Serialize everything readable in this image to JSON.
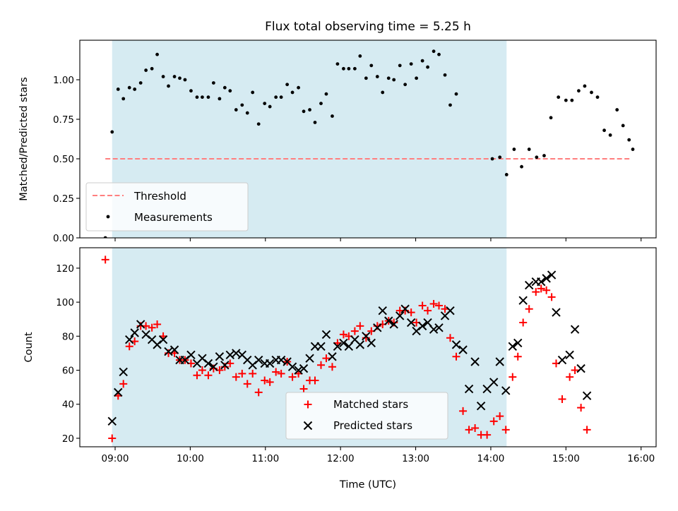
{
  "figure": {
    "title": "Flux total observing time = 5.25 h"
  },
  "chart_data": [
    {
      "type": "scatter",
      "title": "Flux total observing time = 5.25 h",
      "xlabel": "",
      "ylabel": "Matched/Predicted stars",
      "xlim": [
        8.53,
        16.2
      ],
      "ylim": [
        0.0,
        1.25
      ],
      "yticks": [
        "0.00",
        "0.25",
        "0.50",
        "0.75",
        "1.00"
      ],
      "xticks": [
        9,
        10,
        11,
        12,
        13,
        14,
        15,
        16
      ],
      "shaded_span": [
        8.96,
        14.21
      ],
      "threshold": {
        "name": "Threshold",
        "value": 0.5,
        "x_range": [
          8.87,
          15.87
        ],
        "color": "#ff7f7f"
      },
      "legend": {
        "position": "lower-left",
        "entries": [
          "Threshold",
          "Measurements"
        ]
      },
      "series": [
        {
          "name": "Measurements",
          "color": "#000000",
          "points": [
            [
              8.87,
              0.0
            ],
            [
              8.96,
              0.67
            ],
            [
              9.04,
              0.94
            ],
            [
              9.11,
              0.88
            ],
            [
              9.19,
              0.95
            ],
            [
              9.26,
              0.94
            ],
            [
              9.34,
              0.98
            ],
            [
              9.41,
              1.06
            ],
            [
              9.49,
              1.07
            ],
            [
              9.56,
              1.16
            ],
            [
              9.64,
              1.02
            ],
            [
              9.71,
              0.96
            ],
            [
              9.79,
              1.02
            ],
            [
              9.86,
              1.01
            ],
            [
              9.93,
              1.0
            ],
            [
              10.01,
              0.93
            ],
            [
              10.09,
              0.89
            ],
            [
              10.16,
              0.89
            ],
            [
              10.24,
              0.89
            ],
            [
              10.31,
              0.98
            ],
            [
              10.39,
              0.88
            ],
            [
              10.46,
              0.95
            ],
            [
              10.53,
              0.93
            ],
            [
              10.61,
              0.81
            ],
            [
              10.69,
              0.84
            ],
            [
              10.76,
              0.79
            ],
            [
              10.83,
              0.92
            ],
            [
              10.91,
              0.72
            ],
            [
              10.99,
              0.85
            ],
            [
              11.06,
              0.83
            ],
            [
              11.14,
              0.89
            ],
            [
              11.21,
              0.89
            ],
            [
              11.29,
              0.97
            ],
            [
              11.36,
              0.92
            ],
            [
              11.44,
              0.95
            ],
            [
              11.51,
              0.8
            ],
            [
              11.59,
              0.81
            ],
            [
              11.66,
              0.73
            ],
            [
              11.74,
              0.85
            ],
            [
              11.81,
              0.91
            ],
            [
              11.89,
              0.77
            ],
            [
              11.96,
              1.1
            ],
            [
              12.04,
              1.07
            ],
            [
              12.11,
              1.07
            ],
            [
              12.19,
              1.07
            ],
            [
              12.26,
              1.15
            ],
            [
              12.34,
              1.01
            ],
            [
              12.41,
              1.09
            ],
            [
              12.49,
              1.02
            ],
            [
              12.56,
              0.92
            ],
            [
              12.64,
              1.01
            ],
            [
              12.71,
              1.0
            ],
            [
              12.79,
              1.09
            ],
            [
              12.86,
              0.97
            ],
            [
              12.94,
              1.1
            ],
            [
              13.01,
              1.01
            ],
            [
              13.09,
              1.12
            ],
            [
              13.16,
              1.08
            ],
            [
              13.24,
              1.18
            ],
            [
              13.31,
              1.16
            ],
            [
              13.39,
              1.03
            ],
            [
              13.46,
              0.84
            ],
            [
              13.54,
              0.91
            ],
            [
              14.02,
              0.5
            ],
            [
              14.12,
              0.51
            ],
            [
              14.21,
              0.4
            ],
            [
              14.31,
              0.56
            ],
            [
              14.41,
              0.45
            ],
            [
              14.51,
              0.56
            ],
            [
              14.61,
              0.51
            ],
            [
              14.71,
              0.52
            ],
            [
              14.8,
              0.76
            ],
            [
              14.9,
              0.89
            ],
            [
              15.0,
              0.87
            ],
            [
              15.08,
              0.87
            ],
            [
              15.17,
              0.93
            ],
            [
              15.25,
              0.96
            ],
            [
              15.34,
              0.92
            ],
            [
              15.42,
              0.89
            ],
            [
              15.51,
              0.68
            ],
            [
              15.59,
              0.65
            ],
            [
              15.68,
              0.81
            ],
            [
              15.76,
              0.71
            ],
            [
              15.84,
              0.62
            ],
            [
              15.89,
              0.56
            ]
          ]
        }
      ]
    },
    {
      "type": "scatter",
      "title": "",
      "xlabel": "Time (UTC)",
      "ylabel": "Count",
      "xlim": [
        8.53,
        16.2
      ],
      "ylim": [
        15.0,
        132.0
      ],
      "yticks": [
        "20",
        "40",
        "60",
        "80",
        "100",
        "120"
      ],
      "xticks": [
        "09:00",
        "10:00",
        "11:00",
        "12:00",
        "13:00",
        "14:00",
        "15:00",
        "16:00"
      ],
      "shaded_span": [
        8.96,
        14.21
      ],
      "legend": {
        "position": "lower-center",
        "entries": [
          "Matched stars",
          "Predicted stars"
        ]
      },
      "series": [
        {
          "name": "Matched stars",
          "marker": "+",
          "color": "#ff0000",
          "points": [
            [
              8.87,
              125
            ],
            [
              8.96,
              20
            ],
            [
              9.04,
              45
            ],
            [
              9.11,
              52
            ],
            [
              9.19,
              74
            ],
            [
              9.26,
              77
            ],
            [
              9.34,
              86
            ],
            [
              9.41,
              86
            ],
            [
              9.49,
              85
            ],
            [
              9.56,
              87
            ],
            [
              9.64,
              80
            ],
            [
              9.71,
              70
            ],
            [
              9.79,
              70
            ],
            [
              9.86,
              66
            ],
            [
              9.93,
              66
            ],
            [
              10.01,
              64
            ],
            [
              10.09,
              57
            ],
            [
              10.16,
              60
            ],
            [
              10.24,
              57
            ],
            [
              10.31,
              61
            ],
            [
              10.39,
              60
            ],
            [
              10.46,
              62
            ],
            [
              10.53,
              64
            ],
            [
              10.61,
              56
            ],
            [
              10.69,
              58
            ],
            [
              10.76,
              52
            ],
            [
              10.83,
              58
            ],
            [
              10.91,
              47
            ],
            [
              10.99,
              54
            ],
            [
              11.06,
              53
            ],
            [
              11.14,
              59
            ],
            [
              11.21,
              58
            ],
            [
              11.29,
              65
            ],
            [
              11.36,
              56
            ],
            [
              11.44,
              58
            ],
            [
              11.51,
              49
            ],
            [
              11.59,
              54
            ],
            [
              11.66,
              54
            ],
            [
              11.74,
              63
            ],
            [
              11.81,
              67
            ],
            [
              11.89,
              62
            ],
            [
              11.96,
              76
            ],
            [
              12.04,
              81
            ],
            [
              12.11,
              80
            ],
            [
              12.19,
              83
            ],
            [
              12.26,
              86
            ],
            [
              12.34,
              79
            ],
            [
              12.41,
              83
            ],
            [
              12.49,
              86
            ],
            [
              12.56,
              87
            ],
            [
              12.64,
              89
            ],
            [
              12.71,
              88
            ],
            [
              12.79,
              95
            ],
            [
              12.86,
              95
            ],
            [
              12.94,
              94
            ],
            [
              13.01,
              88
            ],
            [
              13.09,
              98
            ],
            [
              13.16,
              95
            ],
            [
              13.24,
              99
            ],
            [
              13.31,
              98
            ],
            [
              13.39,
              96
            ],
            [
              13.46,
              79
            ],
            [
              13.54,
              68
            ],
            [
              13.63,
              36
            ],
            [
              13.71,
              25
            ],
            [
              13.79,
              26
            ],
            [
              13.87,
              22
            ],
            [
              13.95,
              22
            ],
            [
              14.04,
              30
            ],
            [
              14.12,
              33
            ],
            [
              14.2,
              25
            ],
            [
              14.29,
              56
            ],
            [
              14.36,
              68
            ],
            [
              14.43,
              88
            ],
            [
              14.51,
              96
            ],
            [
              14.6,
              106
            ],
            [
              14.67,
              108
            ],
            [
              14.74,
              107
            ],
            [
              14.81,
              103
            ],
            [
              14.87,
              64
            ],
            [
              14.95,
              43
            ],
            [
              15.05,
              56
            ],
            [
              15.12,
              60
            ],
            [
              15.2,
              38
            ],
            [
              15.28,
              25
            ]
          ]
        },
        {
          "name": "Predicted stars",
          "marker": "x",
          "color": "#000000",
          "points": [
            [
              8.96,
              30
            ],
            [
              9.04,
              47
            ],
            [
              9.11,
              59
            ],
            [
              9.19,
              78
            ],
            [
              9.26,
              82
            ],
            [
              9.34,
              87
            ],
            [
              9.41,
              81
            ],
            [
              9.49,
              78
            ],
            [
              9.56,
              75
            ],
            [
              9.64,
              78
            ],
            [
              9.71,
              71
            ],
            [
              9.79,
              72
            ],
            [
              9.86,
              66
            ],
            [
              9.93,
              66
            ],
            [
              10.01,
              69
            ],
            [
              10.09,
              64
            ],
            [
              10.16,
              67
            ],
            [
              10.24,
              64
            ],
            [
              10.31,
              62
            ],
            [
              10.39,
              68
            ],
            [
              10.46,
              63
            ],
            [
              10.53,
              69
            ],
            [
              10.61,
              70
            ],
            [
              10.69,
              69
            ],
            [
              10.76,
              66
            ],
            [
              10.83,
              63
            ],
            [
              10.91,
              66
            ],
            [
              10.99,
              64
            ],
            [
              11.06,
              64
            ],
            [
              11.14,
              66
            ],
            [
              11.21,
              66
            ],
            [
              11.29,
              65
            ],
            [
              11.36,
              62
            ],
            [
              11.44,
              60
            ],
            [
              11.51,
              61
            ],
            [
              11.59,
              67
            ],
            [
              11.66,
              74
            ],
            [
              11.74,
              74
            ],
            [
              11.81,
              81
            ],
            [
              11.89,
              68
            ],
            [
              11.96,
              74
            ],
            [
              12.04,
              76
            ],
            [
              12.11,
              74
            ],
            [
              12.19,
              78
            ],
            [
              12.26,
              75
            ],
            [
              12.34,
              80
            ],
            [
              12.41,
              76
            ],
            [
              12.49,
              85
            ],
            [
              12.56,
              95
            ],
            [
              12.64,
              89
            ],
            [
              12.71,
              87
            ],
            [
              12.79,
              92
            ],
            [
              12.86,
              96
            ],
            [
              12.94,
              88
            ],
            [
              13.01,
              83
            ],
            [
              13.09,
              86
            ],
            [
              13.16,
              88
            ],
            [
              13.24,
              84
            ],
            [
              13.31,
              85
            ],
            [
              13.39,
              92
            ],
            [
              13.46,
              95
            ],
            [
              13.54,
              75
            ],
            [
              13.63,
              72
            ],
            [
              13.71,
              49
            ],
            [
              13.79,
              65
            ],
            [
              13.87,
              39
            ],
            [
              13.95,
              49
            ],
            [
              14.04,
              53
            ],
            [
              14.12,
              65
            ],
            [
              14.2,
              48
            ],
            [
              14.29,
              74
            ],
            [
              14.36,
              76
            ],
            [
              14.43,
              101
            ],
            [
              14.51,
              110
            ],
            [
              14.6,
              112
            ],
            [
              14.67,
              112
            ],
            [
              14.74,
              114
            ],
            [
              14.81,
              116
            ],
            [
              14.87,
              94
            ],
            [
              14.95,
              66
            ],
            [
              15.05,
              69
            ],
            [
              15.12,
              84
            ],
            [
              15.2,
              61
            ],
            [
              15.28,
              45
            ]
          ]
        }
      ]
    }
  ]
}
